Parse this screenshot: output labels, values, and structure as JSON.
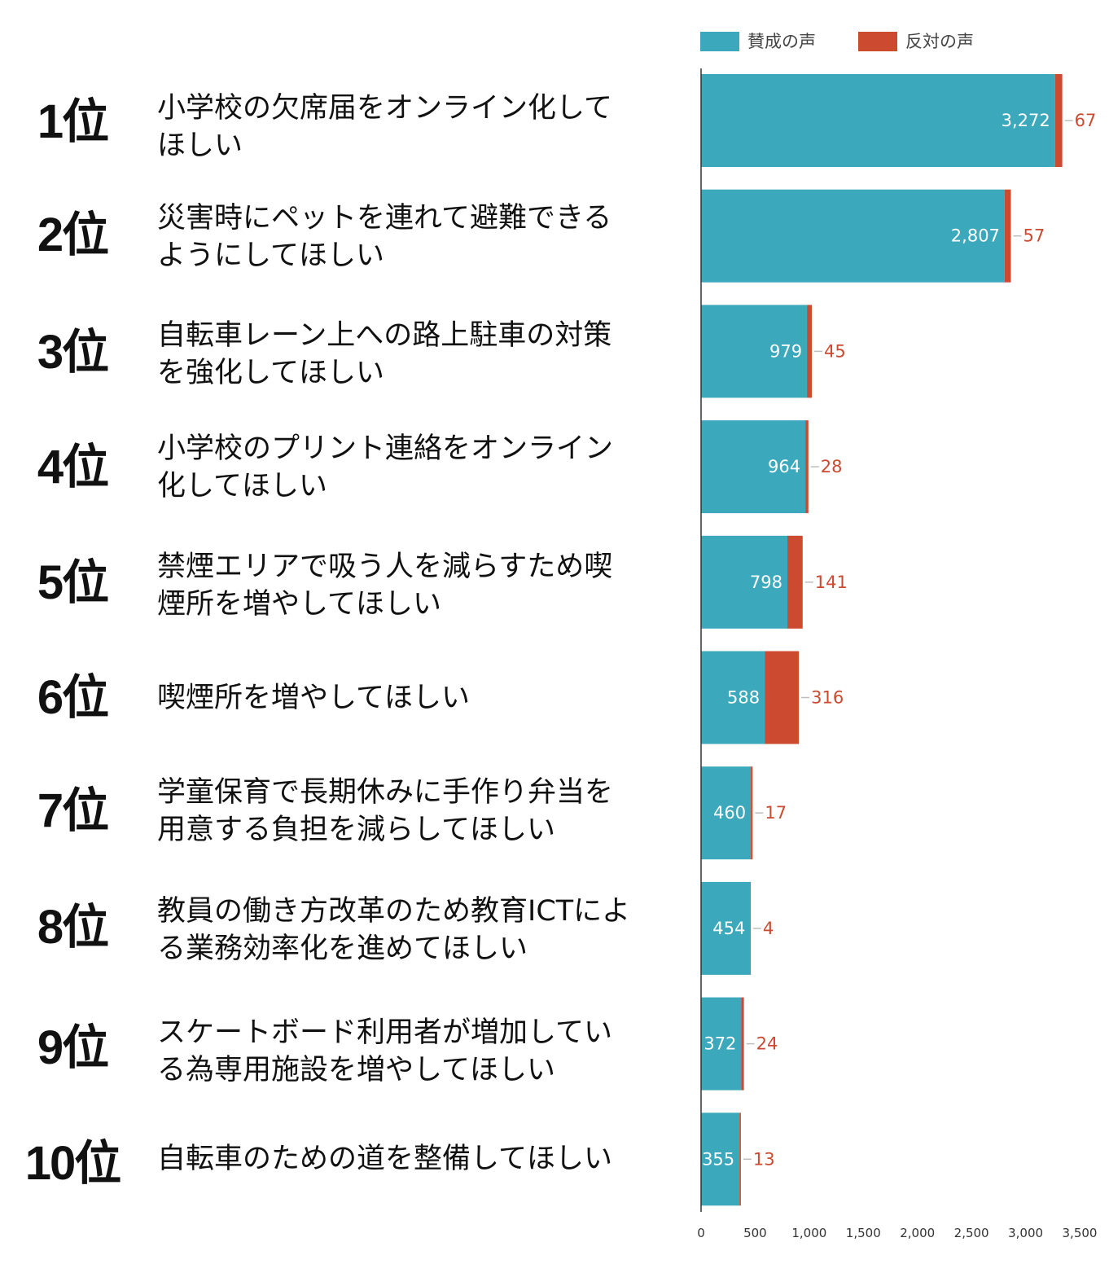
{
  "chart_data": {
    "type": "bar",
    "orientation": "horizontal",
    "stacked": true,
    "categories": [
      "小学校の欠席届をオンライン化してほしい",
      "災害時にペットを連れて避難できるようにしてほしい",
      "自転車レーン上への路上駐車の対策を強化してほしい",
      "小学校のプリント連絡をオンライン化してほしい",
      "禁煙エリアで吸う人を減らすため喫煙所を増やしてほしい",
      "喫煙所を増やしてほしい",
      "学童保育で長期休みに手作り弁当を用意する負担を減らしてほしい",
      "教員の働き方改革のため教育ICTによる業務効率化を進めてほしい",
      "スケートボード利用者が増加している為専用施設を増やしてほしい",
      "自転車のための道を整備してほしい"
    ],
    "ranks": [
      "1位",
      "2位",
      "3位",
      "4位",
      "5位",
      "6位",
      "7位",
      "8位",
      "9位",
      "10位"
    ],
    "series": [
      {
        "name": "賛成の声",
        "color": "#3BA8BC",
        "values": [
          3272,
          2807,
          979,
          964,
          798,
          588,
          460,
          454,
          372,
          355
        ],
        "labels": [
          "3,272",
          "2,807",
          "979",
          "964",
          "798",
          "588",
          "460",
          "454",
          "372",
          "355"
        ]
      },
      {
        "name": "反対の声",
        "color": "#CC4A2F",
        "values": [
          67,
          57,
          45,
          28,
          141,
          316,
          17,
          4,
          24,
          13
        ],
        "labels": [
          "67",
          "57",
          "45",
          "28",
          "141",
          "316",
          "17",
          "4",
          "24",
          "13"
        ]
      }
    ],
    "xlim": [
      0,
      3500
    ],
    "x_ticks": [
      0,
      500,
      1000,
      1500,
      2000,
      2500,
      3000,
      3500
    ],
    "x_tick_labels": [
      "0",
      "500",
      "1,000",
      "1,500",
      "2,000",
      "2,500",
      "3,000",
      "3,500"
    ],
    "legend_position": "top",
    "grid": false,
    "title": "",
    "xlabel": "",
    "ylabel": ""
  }
}
